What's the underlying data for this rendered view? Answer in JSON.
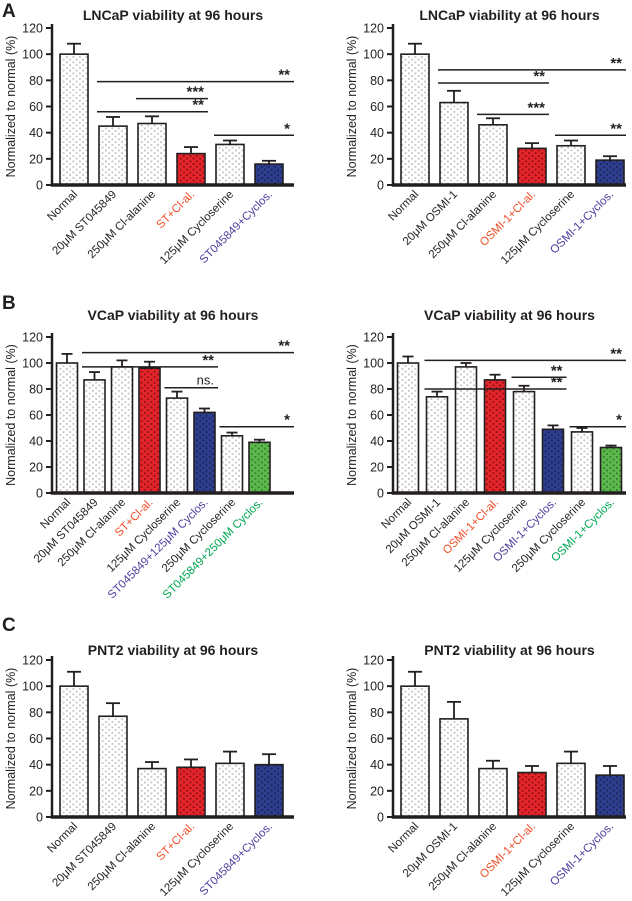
{
  "panel_letters": [
    "A",
    "B",
    "C"
  ],
  "colors": {
    "axis_black": "#231f20",
    "bar_white_bg": "#ffffff",
    "bar_white_dot": "#c4c4c4",
    "bar_red": "#e3242b",
    "bar_red_dot": "#8e1216",
    "bar_blue": "#2e3e8e",
    "bar_blue_dot": "#1c2459",
    "bar_green": "#5cb84c",
    "bar_green_dot": "#36812d",
    "label_red": "#f04e29",
    "label_blue": "#4a3f9e",
    "label_green": "#00a651"
  },
  "chart_data": [
    {
      "id": "lncap-st045849",
      "type": "bar",
      "title": "LNCaP viability at 96 hours",
      "ylabel": "Normalized to normal (%)",
      "ylim": [
        0,
        120
      ],
      "yticks": [
        0,
        20,
        40,
        60,
        80,
        100,
        120
      ],
      "categories": [
        "Normal",
        "20μM ST045849",
        "250μM Cl-alanine",
        "ST+Cl-al.",
        "125μM Cycloserine",
        "ST045849+Cyclos."
      ],
      "values": [
        100,
        45,
        47,
        24,
        31,
        16
      ],
      "errors": [
        8,
        7,
        5.5,
        5,
        3,
        2.5
      ],
      "bar_styles": [
        "dotted-white",
        "dotted-white",
        "dotted-white",
        "red",
        "dotted-white",
        "blue"
      ],
      "label_colors": [
        "black",
        "black",
        "black",
        "red",
        "black",
        "blue"
      ],
      "significance": [
        {
          "from": 1,
          "to": 5,
          "y": 79,
          "label": "**"
        },
        {
          "from": 2,
          "to": 3,
          "y": 66,
          "label": "***"
        },
        {
          "from": 1,
          "to": 3,
          "y": 56,
          "label": "**"
        },
        {
          "from": 4,
          "to": 5,
          "y": 38,
          "label": "*"
        }
      ]
    },
    {
      "id": "lncap-osmi1",
      "type": "bar",
      "title": "LNCaP viability at 96 hours",
      "ylabel": "Normalized to normal (%)",
      "ylim": [
        0,
        120
      ],
      "yticks": [
        0,
        20,
        40,
        60,
        80,
        100,
        120
      ],
      "categories": [
        "Normal",
        "20μM OSMI-1",
        "250μM Cl-alanine",
        "OSMI-1+Cl-al.",
        "125μM Cycloserine",
        "OSMI-1+Cyclos."
      ],
      "values": [
        100,
        63,
        46,
        28,
        30,
        19
      ],
      "errors": [
        8,
        9,
        5,
        4,
        4,
        3
      ],
      "bar_styles": [
        "dotted-white",
        "dotted-white",
        "dotted-white",
        "red",
        "dotted-white",
        "blue"
      ],
      "label_colors": [
        "black",
        "black",
        "black",
        "red",
        "black",
        "blue"
      ],
      "significance": [
        {
          "from": 1,
          "to": 5,
          "y": 88,
          "label": "**"
        },
        {
          "from": 1,
          "to": 3,
          "y": 78,
          "label": "**"
        },
        {
          "from": 2,
          "to": 3,
          "y": 54,
          "label": "***"
        },
        {
          "from": 4,
          "to": 5,
          "y": 38,
          "label": "**"
        }
      ]
    },
    {
      "id": "vcap-st045849",
      "type": "bar",
      "title": "VCaP viability at 96 hours",
      "ylabel": "Normalized to normal (%)",
      "ylim": [
        0,
        120
      ],
      "yticks": [
        0,
        20,
        40,
        60,
        80,
        100,
        120
      ],
      "categories": [
        "Normal",
        "20μM ST045849",
        "250μM Cl-alanine",
        "ST+Cl-al.",
        "125μM Cycloserine",
        "ST045849+125μM Cyclos.",
        "250μM Cycloserine",
        "ST045849+250μM Cyclos."
      ],
      "values": [
        100,
        87,
        97,
        96,
        73,
        62,
        44,
        39
      ],
      "errors": [
        7,
        6,
        5,
        5,
        5,
        3,
        2.5,
        2
      ],
      "bar_styles": [
        "dotted-white",
        "dotted-white",
        "dotted-white",
        "red",
        "dotted-white",
        "blue",
        "dotted-white",
        "green"
      ],
      "label_colors": [
        "black",
        "black",
        "black",
        "red",
        "black",
        "blue",
        "black",
        "green"
      ],
      "significance": [
        {
          "from": 1,
          "to": 7,
          "y": 108,
          "label": "**"
        },
        {
          "from": 1,
          "to": 5,
          "y": 97,
          "label": "**"
        },
        {
          "from": 4,
          "to": 5,
          "y": 81,
          "label": "ns."
        },
        {
          "from": 6,
          "to": 7,
          "y": 51,
          "label": "*"
        }
      ]
    },
    {
      "id": "vcap-osmi1",
      "type": "bar",
      "title": "VCaP viability at 96 hours",
      "ylabel": "Normalized to normal (%)",
      "ylim": [
        0,
        120
      ],
      "yticks": [
        0,
        20,
        40,
        60,
        80,
        100,
        120
      ],
      "categories": [
        "Normal",
        "20μM OSMI-1",
        "250μM Cl-alanine",
        "OSMI-1+Cl-al.",
        "125μM Cycloserine",
        "OSMI-1+Cyclos.",
        "250μM Cycloserine",
        "OSMI-1+Cyclos."
      ],
      "values": [
        100,
        74,
        97,
        87,
        78,
        49,
        47,
        35
      ],
      "errors": [
        5,
        4,
        3,
        4,
        4.5,
        3,
        3,
        1.5
      ],
      "bar_styles": [
        "dotted-white",
        "dotted-white",
        "dotted-white",
        "red",
        "dotted-white",
        "blue",
        "dotted-white",
        "green"
      ],
      "label_colors": [
        "black",
        "black",
        "black",
        "red",
        "black",
        "blue",
        "black",
        "green"
      ],
      "significance": [
        {
          "from": 1,
          "to": 7,
          "y": 102,
          "label": "**"
        },
        {
          "from": 4,
          "to": 5,
          "y": 89,
          "label": "**"
        },
        {
          "from": 1,
          "to": 5,
          "y": 80,
          "label": "**"
        },
        {
          "from": 6,
          "to": 7,
          "y": 51,
          "label": "*"
        }
      ]
    },
    {
      "id": "pnt2-st045849",
      "type": "bar",
      "title": "PNT2 viability at 96 hours",
      "ylabel": "Normalized to normal (%)",
      "ylim": [
        0,
        120
      ],
      "yticks": [
        0,
        20,
        40,
        60,
        80,
        100,
        120
      ],
      "categories": [
        "Normal",
        "20μM ST045849",
        "250μM Cl-alanine",
        "ST+Cl-al.",
        "125μM Cycloserine",
        "ST045849+Cyclos."
      ],
      "values": [
        100,
        77,
        37,
        38,
        41,
        40
      ],
      "errors": [
        11,
        10,
        5,
        6,
        9,
        8
      ],
      "bar_styles": [
        "dotted-white",
        "dotted-white",
        "dotted-white",
        "red",
        "dotted-white",
        "blue"
      ],
      "label_colors": [
        "black",
        "black",
        "black",
        "red",
        "black",
        "blue"
      ],
      "significance": []
    },
    {
      "id": "pnt2-osmi1",
      "type": "bar",
      "title": "PNT2 viability at 96 hours",
      "ylabel": "Normalized to normal (%)",
      "ylim": [
        0,
        120
      ],
      "yticks": [
        0,
        20,
        40,
        60,
        80,
        100,
        120
      ],
      "categories": [
        "Normal",
        "20μM OSMI-1",
        "250μM Cl-alanine",
        "OSMI-1+Cl-al.",
        "125μM Cycloserine",
        "OSMI-1+Cyclos."
      ],
      "values": [
        100,
        75,
        37,
        34,
        41,
        32
      ],
      "errors": [
        11,
        13,
        6,
        5,
        9,
        7
      ],
      "bar_styles": [
        "dotted-white",
        "dotted-white",
        "dotted-white",
        "red",
        "dotted-white",
        "blue"
      ],
      "label_colors": [
        "black",
        "black",
        "black",
        "red",
        "black",
        "blue"
      ],
      "significance": []
    }
  ]
}
